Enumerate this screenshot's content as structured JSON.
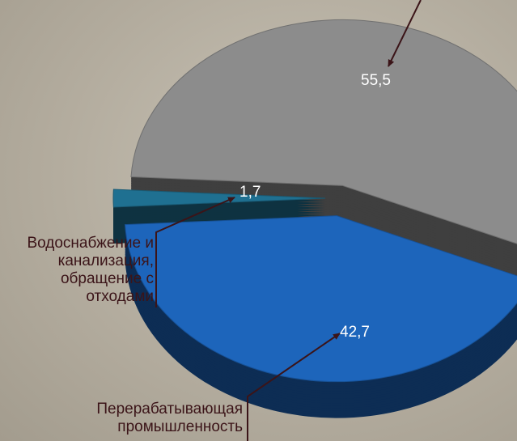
{
  "chart_data": {
    "type": "pie",
    "categories": [
      null,
      "Водоснабжение и канализация, обращение с отходами",
      "Перерабатывающая промышленность"
    ],
    "values": [
      55.5,
      1.7,
      42.7
    ],
    "value_labels": [
      "55,5",
      "1,7",
      "42,7"
    ],
    "colors": [
      "#8c8c8c",
      "#1f7091",
      "#1d65bb"
    ]
  }
}
